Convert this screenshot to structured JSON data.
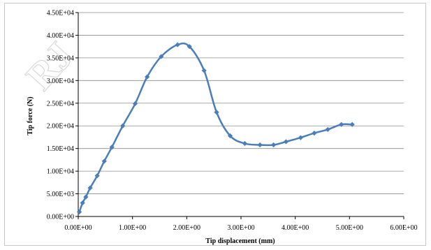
{
  "chart_data": {
    "type": "scatter",
    "title": "",
    "xlabel": "Tip displacement (mm)",
    "ylabel": "Tip force (N)",
    "xlim": [
      0,
      6
    ],
    "ylim": [
      0,
      45000
    ],
    "x_ticks": [
      "0.00E+00",
      "1.00E+00",
      "2.00E+00",
      "3.00E+00",
      "4.00E+00",
      "5.00E+00",
      "6.00E+00"
    ],
    "y_ticks": [
      "0.00E+00",
      "5.00E+03",
      "1.00E+04",
      "1.50E+04",
      "2.00E+04",
      "2.50E+04",
      "3.00E+04",
      "3.50E+04",
      "4.00E+04",
      "4.50E+04"
    ],
    "grid": "horizontal",
    "legend": "none",
    "series": [
      {
        "color": "#4a7ebb",
        "marker": "diamond",
        "line": "smooth",
        "points": [
          [
            0.02,
            1000
          ],
          [
            0.08,
            3000
          ],
          [
            0.14,
            4300
          ],
          [
            0.22,
            6300
          ],
          [
            0.35,
            9000
          ],
          [
            0.48,
            12200
          ],
          [
            0.62,
            15300
          ],
          [
            0.82,
            20000
          ],
          [
            1.05,
            24900
          ],
          [
            1.27,
            30800
          ],
          [
            1.53,
            35300
          ],
          [
            1.83,
            37900
          ],
          [
            2.05,
            37500
          ],
          [
            2.32,
            32200
          ],
          [
            2.55,
            23000
          ],
          [
            2.8,
            17800
          ],
          [
            3.07,
            16100
          ],
          [
            3.35,
            15800
          ],
          [
            3.6,
            15800
          ],
          [
            3.83,
            16500
          ],
          [
            4.1,
            17400
          ],
          [
            4.35,
            18400
          ],
          [
            4.6,
            19200
          ],
          [
            4.85,
            20300
          ],
          [
            5.05,
            20300
          ]
        ]
      }
    ]
  }
}
